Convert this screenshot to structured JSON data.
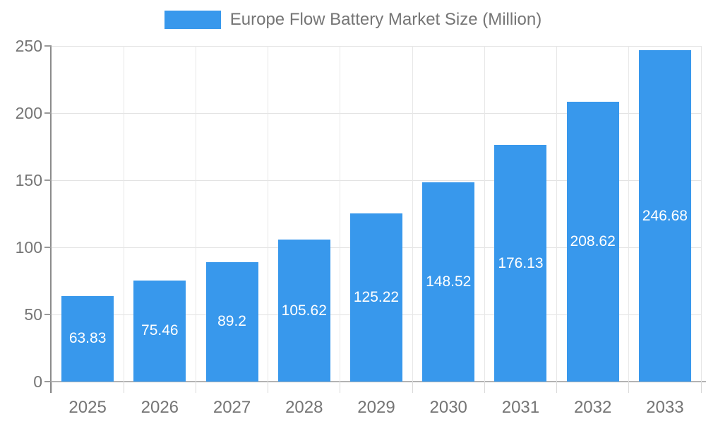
{
  "legend": {
    "swatch_color": "#3898ec",
    "label": "Europe Flow Battery Market Size (Million)"
  },
  "chart_data": {
    "type": "bar",
    "title": "Europe Flow Battery Market Size (Million)",
    "xlabel": "",
    "ylabel": "",
    "categories": [
      "2025",
      "2026",
      "2027",
      "2028",
      "2029",
      "2030",
      "2031",
      "2032",
      "2033"
    ],
    "series": [
      {
        "name": "Europe Flow Battery Market Size (Million)",
        "values": [
          63.83,
          75.46,
          89.2,
          105.62,
          125.22,
          148.52,
          176.13,
          208.62,
          246.68
        ]
      }
    ],
    "value_labels": [
      "63.83",
      "75.46",
      "89.2",
      "105.62",
      "125.22",
      "148.52",
      "176.13",
      "208.62",
      "246.68"
    ],
    "ylim": [
      0,
      250
    ],
    "yticks": [
      0,
      50,
      100,
      150,
      200,
      250
    ],
    "grid": true,
    "legend_position": "top",
    "bar_color": "#3898ec",
    "value_label_color": "#ffffff",
    "axis_text_color": "#757575"
  }
}
